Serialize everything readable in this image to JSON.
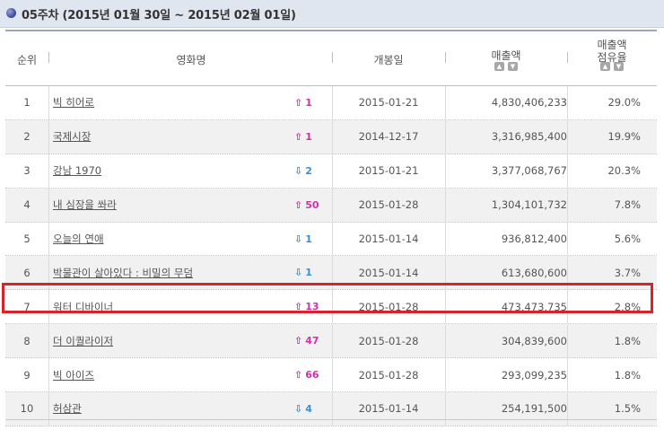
{
  "header": {
    "title": "05주차 (2015년 01월 30일 ~ 2015년 02월 01일)"
  },
  "table": {
    "columns": {
      "rank": "순위",
      "title": "영화명",
      "release": "개봉일",
      "sales": "매출액",
      "share_line1": "매출액",
      "share_line2": "점유율"
    },
    "rows": [
      {
        "rank": "1",
        "title": "빅 히어로",
        "dir": "up",
        "change": "1",
        "date": "2015-01-21",
        "sales": "4,830,406,233",
        "share": "29.0%"
      },
      {
        "rank": "2",
        "title": "국제시장",
        "dir": "up",
        "change": "1",
        "date": "2014-12-17",
        "sales": "3,316,985,400",
        "share": "19.9%"
      },
      {
        "rank": "3",
        "title": "강남 1970",
        "dir": "down",
        "change": "2",
        "date": "2015-01-21",
        "sales": "3,377,068,767",
        "share": "20.3%"
      },
      {
        "rank": "4",
        "title": "내 심장을 쏴라",
        "dir": "up",
        "change": "50",
        "date": "2015-01-28",
        "sales": "1,304,101,732",
        "share": "7.8%"
      },
      {
        "rank": "5",
        "title": "오늘의 연애",
        "dir": "down",
        "change": "1",
        "date": "2015-01-14",
        "sales": "936,812,400",
        "share": "5.6%"
      },
      {
        "rank": "6",
        "title": "박물관이 살아있다 : 비밀의 무덤",
        "dir": "down",
        "change": "1",
        "date": "2015-01-14",
        "sales": "613,680,600",
        "share": "3.7%"
      },
      {
        "rank": "7",
        "title": "워터 디바이너",
        "dir": "up",
        "change": "13",
        "date": "2015-01-28",
        "sales": "473,473,735",
        "share": "2.8%"
      },
      {
        "rank": "8",
        "title": "더 이퀄라이저",
        "dir": "up",
        "change": "47",
        "date": "2015-01-28",
        "sales": "304,839,600",
        "share": "1.8%"
      },
      {
        "rank": "9",
        "title": "빅 아이즈",
        "dir": "up",
        "change": "66",
        "date": "2015-01-28",
        "sales": "293,099,235",
        "share": "1.8%"
      },
      {
        "rank": "10",
        "title": "허삼관",
        "dir": "down",
        "change": "4",
        "date": "2015-01-14",
        "sales": "254,191,500",
        "share": "1.5%"
      }
    ]
  },
  "colors": {
    "accent_highlight": "#d9232a",
    "up": "#cc33aa",
    "down": "#3a8fd6"
  }
}
